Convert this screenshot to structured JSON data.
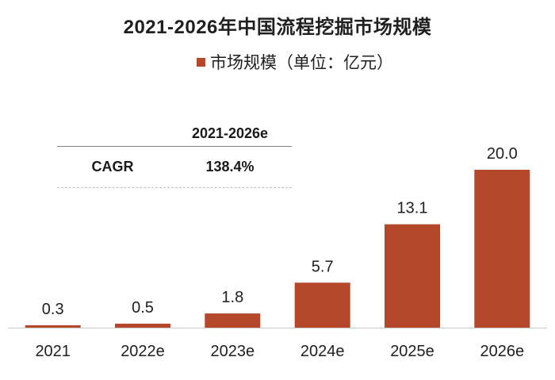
{
  "chart_data": {
    "type": "bar",
    "title": "2021-2026年中国流程挖掘市场规模",
    "legend": [
      "市场规模（单位：亿元）"
    ],
    "legend_position": "top",
    "categories": [
      "2021",
      "2022e",
      "2023e",
      "2024e",
      "2025e",
      "2026e"
    ],
    "series": [
      {
        "name": "市场规模（单位：亿元）",
        "values": [
          0.3,
          0.5,
          1.8,
          5.7,
          13.1,
          20.0
        ]
      }
    ],
    "value_labels": [
      "0.3",
      "0.5",
      "1.8",
      "5.7",
      "13.1",
      "20.0"
    ],
    "xlabel": "",
    "ylabel": "",
    "ylim": [
      0,
      23
    ],
    "grid": false,
    "bar_color": "#b5472a"
  },
  "cagr_table": {
    "header": "2021-2026e",
    "row_label": "CAGR",
    "row_value": "138.4%"
  }
}
